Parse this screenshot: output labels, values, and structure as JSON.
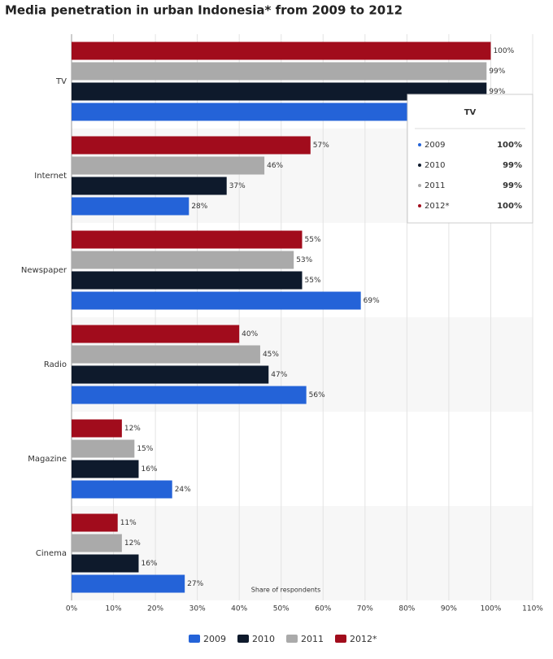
{
  "chart_data": {
    "type": "bar",
    "orientation": "horizontal",
    "title": "Media penetration in urban Indonesia* from 2009 to 2012",
    "x_label": "Share of respondents",
    "categories": [
      "TV",
      "Internet",
      "Newspaper",
      "Radio",
      "Magazine",
      "Cinema"
    ],
    "series": [
      {
        "name": "2009",
        "color": "#2463d8",
        "values": [
          100,
          28,
          69,
          56,
          24,
          27
        ],
        "value_labels": [
          "100%",
          "28%",
          "69%",
          "56%",
          "24%",
          "27%"
        ]
      },
      {
        "name": "2010",
        "color": "#0e1a2c",
        "values": [
          99,
          37,
          55,
          47,
          16,
          16
        ],
        "value_labels": [
          "99%",
          "37%",
          "55%",
          "47%",
          "16%",
          "16%"
        ]
      },
      {
        "name": "2011",
        "color": "#aaaaaa",
        "values": [
          99,
          46,
          53,
          45,
          15,
          12
        ],
        "value_labels": [
          "99%",
          "46%",
          "53%",
          "45%",
          "15%",
          "12%"
        ]
      },
      {
        "name": "2012*",
        "color": "#a10c1c",
        "values": [
          100,
          57,
          55,
          40,
          12,
          11
        ],
        "value_labels": [
          "100%",
          "57%",
          "55%",
          "40%",
          "12%",
          "11%"
        ]
      }
    ],
    "xlim": [
      0,
      110
    ],
    "xticks": [
      {
        "value": 0,
        "label": "0%"
      },
      {
        "value": 10,
        "label": "10%"
      },
      {
        "value": 20,
        "label": "20%"
      },
      {
        "value": 30,
        "label": "30%"
      },
      {
        "value": 40,
        "label": "40%"
      },
      {
        "value": 50,
        "label": "50%"
      },
      {
        "value": 60,
        "label": "60%"
      },
      {
        "value": 70,
        "label": "70%"
      },
      {
        "value": 80,
        "label": "80%"
      },
      {
        "value": 90,
        "label": "90%"
      },
      {
        "value": 100,
        "label": "100%"
      },
      {
        "value": 110,
        "label": "110%"
      }
    ],
    "grid": true,
    "legend": "bottom"
  }
}
